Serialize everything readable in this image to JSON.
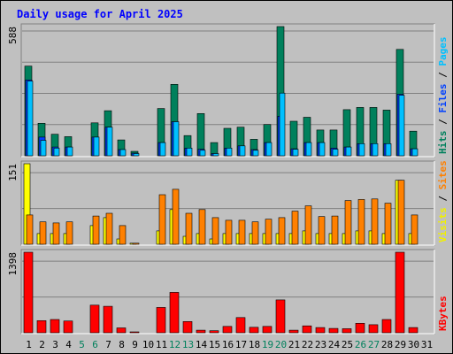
{
  "chart_data": {
    "type": "bar",
    "title": "Daily usage for April 2025",
    "categories": [
      "1",
      "2",
      "3",
      "4",
      "5",
      "6",
      "7",
      "8",
      "9",
      "10",
      "11",
      "12",
      "13",
      "14",
      "15",
      "16",
      "17",
      "18",
      "19",
      "20",
      "21",
      "22",
      "23",
      "24",
      "25",
      "26",
      "27",
      "28",
      "29",
      "30",
      "31"
    ],
    "weekend_days": [
      5,
      6,
      12,
      13,
      19,
      20,
      26,
      27
    ],
    "panels": [
      {
        "name": "hits-files-pages",
        "ymax_label": "588",
        "ymax": 588,
        "side_labels": [
          {
            "text": "Hits",
            "color": "#00805c"
          },
          {
            "text": " / ",
            "color": "#000000"
          },
          {
            "text": "Files",
            "color": "#0040ff"
          },
          {
            "text": " / ",
            "color": "#000000"
          },
          {
            "text": "Pages",
            "color": "#00c0ff"
          }
        ],
        "series": [
          {
            "name": "Hits",
            "color": "#00805c",
            "values": [
              408,
              148,
              98,
              87,
              0,
              150,
              205,
              72,
              20,
              0,
              215,
              325,
              92,
              192,
              60,
              125,
              130,
              75,
              142,
              588,
              157,
              175,
              117,
              117,
              210,
              220,
              220,
              208,
              484,
              112,
              0
            ]
          },
          {
            "name": "Files",
            "color": "#0040ff",
            "values": [
              345,
              85,
              40,
              40,
              0,
              85,
              130,
              28,
              12,
              0,
              60,
              155,
              35,
              30,
              10,
              35,
              45,
              28,
              60,
              180,
              32,
              60,
              60,
              35,
              40,
              55,
              55,
              55,
              280,
              32,
              0
            ]
          },
          {
            "name": "Pages",
            "color": "#00c0ff",
            "values": [
              340,
              70,
              35,
              40,
              0,
              85,
              130,
              28,
              10,
              0,
              60,
              155,
              35,
              25,
              10,
              35,
              45,
              25,
              60,
              285,
              30,
              60,
              60,
              30,
              40,
              55,
              55,
              55,
              275,
              32,
              0
            ]
          }
        ]
      },
      {
        "name": "visits-sites",
        "ymax_label": "151",
        "ymax": 151,
        "side_labels": [
          {
            "text": "Visits",
            "color": "#f0f000"
          },
          {
            "text": " / ",
            "color": "#000000"
          },
          {
            "text": "Sites",
            "color": "#ff8000"
          }
        ],
        "series": [
          {
            "name": "Visits",
            "color": "#ffff00",
            "values": [
              151,
              20,
              20,
              20,
              0,
              35,
              50,
              10,
              2,
              0,
              25,
              65,
              15,
              20,
              10,
              20,
              20,
              20,
              20,
              20,
              20,
              25,
              20,
              20,
              20,
              25,
              25,
              20,
              120,
              20,
              0
            ]
          },
          {
            "name": "Sites",
            "color": "#ff8000",
            "values": [
              55,
              42,
              40,
              42,
              0,
              53,
              58,
              35,
              2,
              0,
              93,
              103,
              58,
              65,
              50,
              45,
              45,
              42,
              47,
              50,
              62,
              72,
              52,
              53,
              82,
              84,
              85,
              77,
              120,
              55,
              0
            ]
          }
        ]
      },
      {
        "name": "kbytes",
        "ymax_label": "1398",
        "ymax": 1398,
        "side_labels": [
          {
            "text": "KBytes",
            "color": "#ff0000"
          }
        ],
        "series": [
          {
            "name": "KBytes",
            "color": "#ff0000",
            "values": [
              1398,
              210,
              230,
              205,
              0,
              480,
              460,
              85,
              15,
              0,
              440,
              700,
              195,
              45,
              35,
              110,
              265,
              95,
              110,
              570,
              45,
              120,
              90,
              75,
              70,
              165,
              140,
              230,
              1398,
              90,
              0
            ]
          }
        ]
      }
    ]
  }
}
